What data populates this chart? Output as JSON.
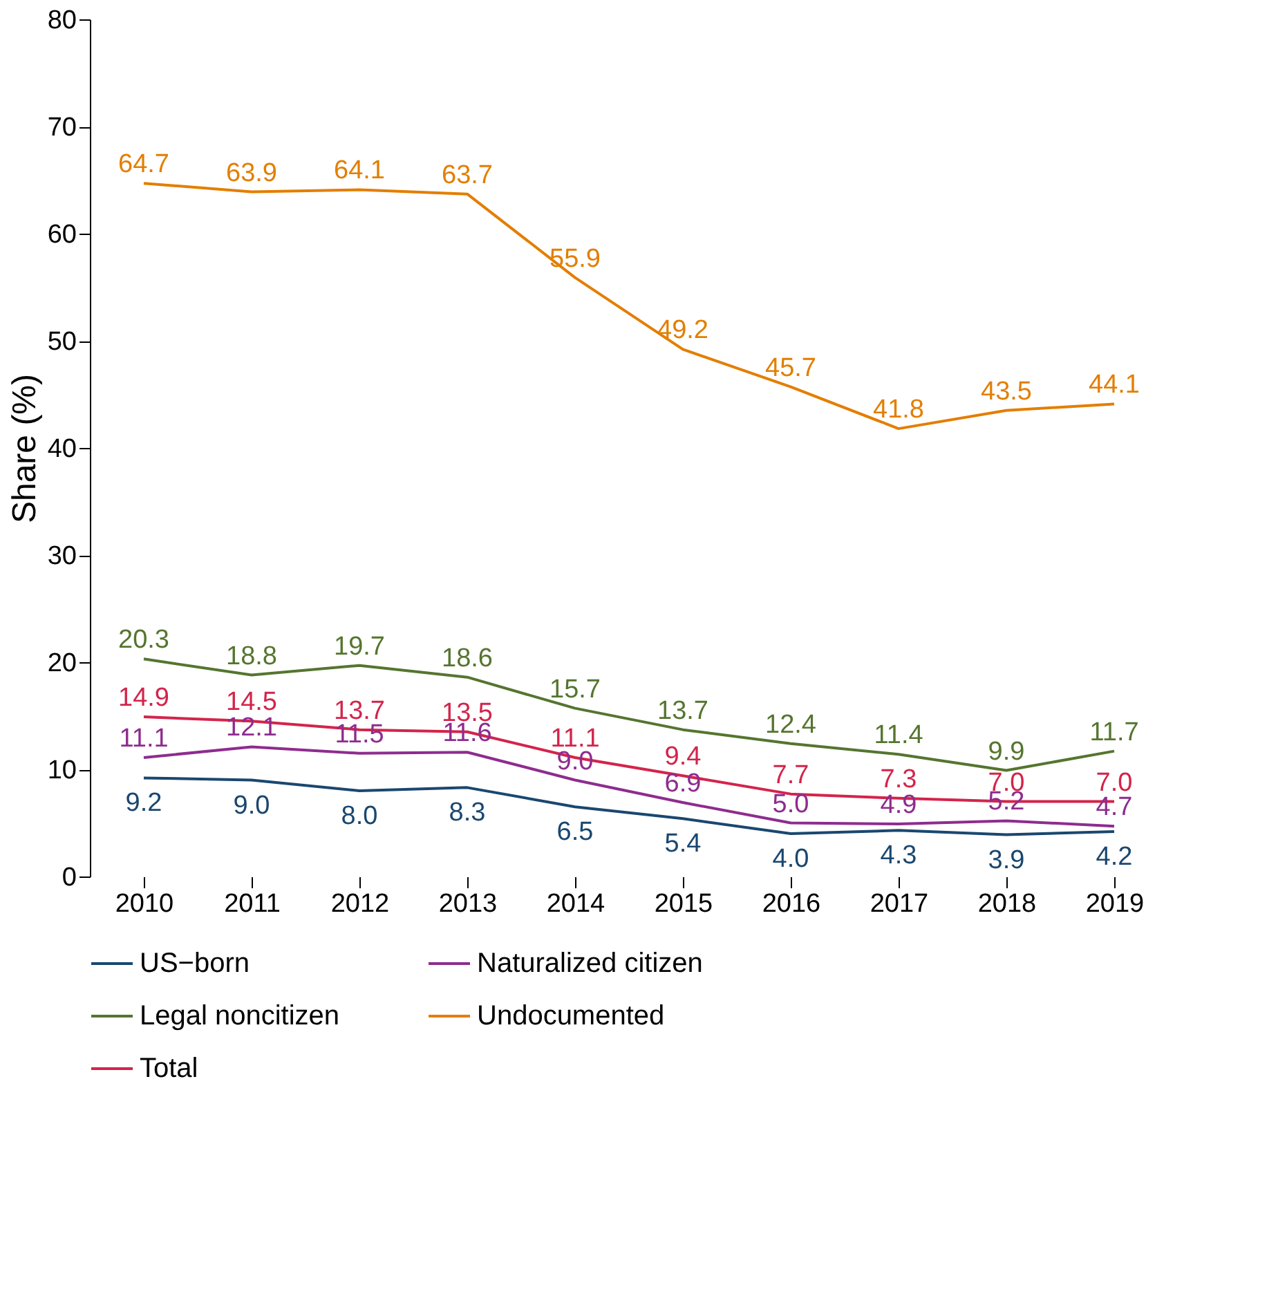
{
  "chart_data": {
    "type": "line",
    "ylabel": "Share (%)",
    "categories": [
      "2010",
      "2011",
      "2012",
      "2013",
      "2014",
      "2015",
      "2016",
      "2017",
      "2018",
      "2019"
    ],
    "ylim": [
      0,
      80
    ],
    "yticks": [
      0,
      10,
      20,
      30,
      40,
      50,
      60,
      70,
      80
    ],
    "grid": false,
    "legend": "bottom",
    "marker": "none",
    "line_style": "solid",
    "series": [
      {
        "name": "US−born",
        "color": "#1a476f",
        "values": [
          9.2,
          9.0,
          8.0,
          8.3,
          6.5,
          5.4,
          4.0,
          4.3,
          3.9,
          4.2
        ],
        "value_labels": [
          "9.2",
          "9.0",
          "8.0",
          "8.3",
          "6.5",
          "5.4",
          "4.0",
          "4.3",
          "3.9",
          "4.2"
        ]
      },
      {
        "name": "Naturalized citizen",
        "color": "#8e2c8e",
        "values": [
          11.1,
          12.1,
          11.5,
          11.6,
          9.0,
          6.9,
          5.0,
          4.9,
          5.2,
          4.7
        ],
        "value_labels": [
          "11.1",
          "12.1",
          "11.5",
          "11.6",
          "9.0",
          "6.9",
          "5.0",
          "4.9",
          "5.2",
          "4.7"
        ]
      },
      {
        "name": "Legal noncitizen",
        "color": "#55752f",
        "values": [
          20.3,
          18.8,
          19.7,
          18.6,
          15.7,
          13.7,
          12.4,
          11.4,
          9.9,
          11.7
        ],
        "value_labels": [
          "20.3",
          "18.8",
          "19.7",
          "18.6",
          "15.7",
          "13.7",
          "12.4",
          "11.4",
          "9.9",
          "11.7"
        ]
      },
      {
        "name": "Undocumented",
        "color": "#e37e00",
        "values": [
          64.7,
          63.9,
          64.1,
          63.7,
          55.9,
          49.2,
          45.7,
          41.8,
          43.5,
          44.1
        ],
        "value_labels": [
          "64.7",
          "63.9",
          "64.1",
          "63.7",
          "55.9",
          "49.2",
          "45.7",
          "41.8",
          "43.5",
          "44.1"
        ]
      },
      {
        "name": "Total",
        "color": "#d3244b",
        "values": [
          14.9,
          14.5,
          13.7,
          13.5,
          11.1,
          9.4,
          7.7,
          7.3,
          7.0,
          7.0
        ],
        "value_labels": [
          "14.9",
          "14.5",
          "13.7",
          "13.5",
          "11.1",
          "9.4",
          "7.7",
          "7.3",
          "7.0",
          "7.0"
        ]
      }
    ]
  }
}
